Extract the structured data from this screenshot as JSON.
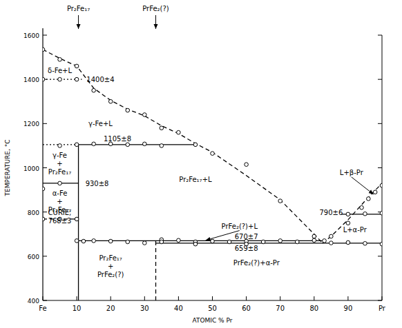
{
  "chart_data": {
    "type": "line",
    "x_label": "ATOMIC % Pr",
    "y_label": "TEMPERATURE, °C",
    "xlim": [
      0,
      100
    ],
    "ylim": [
      400,
      1600
    ],
    "xticks": [
      {
        "value": 0,
        "label": "Fe"
      },
      10,
      20,
      30,
      40,
      50,
      60,
      70,
      80,
      90,
      {
        "value": 100,
        "label": "Pr"
      }
    ],
    "yticks": [
      400,
      600,
      800,
      1000,
      1200,
      1400,
      1600
    ],
    "grid": false,
    "series": [
      {
        "x": [
          0,
          5,
          10,
          12,
          15,
          20,
          25,
          30,
          35,
          40,
          45,
          50,
          60,
          70,
          80,
          82.5
        ],
        "values": [
          1535,
          1495,
          1460,
          1420,
          1360,
          1305,
          1265,
          1235,
          1190,
          1155,
          1110,
          1070,
          965,
          855,
          700,
          659
        ],
        "line_style": "dashed",
        "color": "#000000"
      },
      {
        "x": [
          82.5,
          85,
          90,
          95,
          100
        ],
        "values": [
          659,
          690,
          765,
          850,
          930
        ],
        "line_style": "dashed",
        "color": "#000000"
      },
      {
        "x": [
          0,
          11.5
        ],
        "values": [
          1400,
          1400
        ],
        "line_style": "dotted",
        "color": "#000000"
      },
      {
        "x": [
          0,
          10.5
        ],
        "values": [
          1105,
          1105
        ],
        "line_style": "dotted",
        "color": "#000000"
      },
      {
        "x": [
          10.5,
          45
        ],
        "values": [
          1105,
          1105
        ],
        "line_style": "solid",
        "color": "#000000"
      },
      {
        "x": [
          0,
          10.5
        ],
        "values": [
          930,
          930
        ],
        "line_style": "solid",
        "color": "#000000"
      },
      {
        "x": [
          0,
          10.5
        ],
        "values": [
          768,
          768
        ],
        "line_style": "dashed",
        "color": "#000000"
      },
      {
        "x": [
          10.5,
          82.5
        ],
        "values": [
          670,
          670
        ],
        "line_style": "solid",
        "color": "#000000"
      },
      {
        "x": [
          33.3,
          100
        ],
        "values": [
          659,
          659
        ],
        "line_style": "solid",
        "color": "#000000"
      },
      {
        "x": [
          88,
          100
        ],
        "values": [
          790,
          790
        ],
        "line_style": "solid",
        "color": "#000000"
      },
      {
        "x": [
          10.5,
          10.5
        ],
        "values": [
          400,
          1105
        ],
        "line_style": "solid",
        "color": "#000000"
      },
      {
        "x": [
          33.3,
          33.3
        ],
        "values": [
          400,
          670
        ],
        "line_style": "dashed",
        "color": "#000000"
      },
      {
        "type": "scatter",
        "marker": "circle",
        "color": "#000000",
        "x": [
          0,
          5,
          10,
          15,
          20,
          25,
          30,
          35,
          40,
          45,
          50,
          60,
          70,
          80,
          83,
          85,
          90,
          94,
          96,
          98,
          100,
          0,
          5,
          10,
          5,
          10,
          15,
          20,
          25,
          30,
          35,
          0,
          5,
          0,
          5,
          10,
          10,
          12,
          15,
          20,
          25,
          30,
          35,
          40,
          45,
          50,
          55,
          60,
          65,
          70,
          75,
          80,
          35,
          45,
          60,
          85,
          90,
          95,
          100,
          90,
          95,
          100
        ],
        "values": [
          1535,
          1490,
          1460,
          1350,
          1300,
          1260,
          1240,
          1180,
          1160,
          1105,
          1065,
          1015,
          850,
          690,
          670,
          690,
          750,
          820,
          860,
          890,
          920,
          1400,
          1400,
          1400,
          1100,
          1105,
          1108,
          1108,
          1105,
          1108,
          1100,
          905,
          930,
          768,
          768,
          768,
          670,
          668,
          670,
          668,
          665,
          660,
          675,
          672,
          665,
          668,
          665,
          668,
          665,
          670,
          665,
          672,
          665,
          655,
          655,
          660,
          662,
          658,
          655,
          790,
          792,
          795
        ]
      }
    ],
    "compounds": [
      {
        "label": "Pr₂Fe₁₇",
        "x": 10.5
      },
      {
        "label": "PrFe₂(?)",
        "x": 33.3
      }
    ],
    "annotations": [
      {
        "text": [
          "δ-Fe+L"
        ],
        "x": 5,
        "y": 1440
      },
      {
        "text": [
          "1400±4"
        ],
        "x": 17,
        "y": 1400
      },
      {
        "text": [
          "γ-Fe+L"
        ],
        "x": 17,
        "y": 1200
      },
      {
        "text": [
          "1105±8"
        ],
        "x": 22,
        "y": 1132
      },
      {
        "text": [
          "γ-Fe",
          "+",
          "Pr₂Fe₁₇"
        ],
        "x": 5,
        "y": 1020
      },
      {
        "text": [
          "930±8"
        ],
        "x": 16,
        "y": 930
      },
      {
        "text": [
          "α-Fe",
          "+",
          "Pr₂Fe₁₇"
        ],
        "x": 5,
        "y": 850
      },
      {
        "text": [
          "CURIE;",
          "768±3"
        ],
        "x": 5,
        "y": 780
      },
      {
        "text": [
          "Pr₂Fe₁₇+L"
        ],
        "x": 45,
        "y": 950
      },
      {
        "text": [
          "PrFe₂(?)+L"
        ],
        "x": 58,
        "y": 738,
        "arrow": [
          48,
          672
        ]
      },
      {
        "text": [
          "670±7"
        ],
        "x": 60,
        "y": 690
      },
      {
        "text": [
          "659±8"
        ],
        "x": 60,
        "y": 638
      },
      {
        "text": [
          "Pr₂Fe₁₇",
          "+",
          "PrFe₂(?)"
        ],
        "x": 20,
        "y": 555
      },
      {
        "text": [
          "PrFe₂(?)+α-Pr"
        ],
        "x": 63,
        "y": 570
      },
      {
        "text": [
          "L+β-Pr"
        ],
        "x": 91,
        "y": 980,
        "arrow": [
          97.5,
          880
        ]
      },
      {
        "text": [
          "790±6"
        ],
        "x": 85,
        "y": 800
      },
      {
        "text": [
          "L+α-Pr"
        ],
        "x": 92,
        "y": 720
      }
    ]
  }
}
